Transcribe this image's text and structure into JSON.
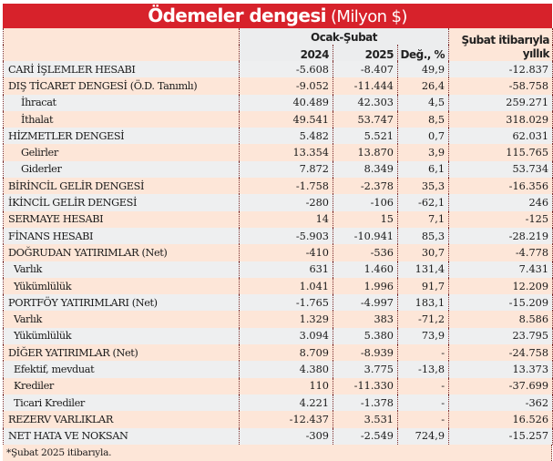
{
  "title": {
    "main": "Ödemeler dengesi",
    "unit": "(Milyon $)"
  },
  "header": {
    "period": "Ocak-Şubat",
    "col_2024": "2024",
    "col_2025": "2025",
    "col_change": "Değ., %",
    "col_annual_line1": "Şubat itibarıyla",
    "col_annual_line2": "yıllık"
  },
  "rows": [
    {
      "label": "CARİ İŞLEMLER HESABI",
      "level": 0,
      "v2024": "-5.608",
      "v2025": "-8.407",
      "change": "49,9",
      "annual": "-12.837"
    },
    {
      "label": "DIŞ TİCARET DENGESİ (Ö.D. Tanımlı)",
      "level": 0,
      "v2024": "-9.052",
      "v2025": "-11.444",
      "change": "26,4",
      "annual": "-58.758"
    },
    {
      "label": "İhracat",
      "level": 1,
      "v2024": "40.489",
      "v2025": "42.303",
      "change": "4,5",
      "annual": "259.271"
    },
    {
      "label": "İthalat",
      "level": 1,
      "v2024": "49.541",
      "v2025": "53.747",
      "change": "8,5",
      "annual": "318.029"
    },
    {
      "label": "HİZMETLER DENGESİ",
      "level": 0,
      "v2024": "5.482",
      "v2025": "5.521",
      "change": "0,7",
      "annual": "62.031"
    },
    {
      "label": "Gelirler",
      "level": 1,
      "v2024": "13.354",
      "v2025": "13.870",
      "change": "3,9",
      "annual": "115.765"
    },
    {
      "label": "Giderler",
      "level": 1,
      "v2024": "7.872",
      "v2025": "8.349",
      "change": "6,1",
      "annual": "53.734"
    },
    {
      "label": "BİRİNCİL GELİR DENGESİ",
      "level": 0,
      "v2024": "-1.758",
      "v2025": "-2.378",
      "change": "35,3",
      "annual": "-16.356"
    },
    {
      "label": "İKİNCİL GELİR DENGESİ",
      "level": 0,
      "v2024": "-280",
      "v2025": "-106",
      "change": "-62,1",
      "annual": "246"
    },
    {
      "label": "SERMAYE HESABI",
      "level": 0,
      "v2024": "14",
      "v2025": "15",
      "change": "7,1",
      "annual": "-125"
    },
    {
      "label": "FİNANS HESABI",
      "level": 0,
      "v2024": "-5.903",
      "v2025": "-10.941",
      "change": "85,3",
      "annual": "-28.219"
    },
    {
      "label": "DOĞRUDAN YATIRIMLAR (Net)",
      "level": 0,
      "v2024": "-410",
      "v2025": "-536",
      "change": "30,7",
      "annual": "-4.778"
    },
    {
      "label": "Varlık",
      "level": 2,
      "v2024": "631",
      "v2025": "1.460",
      "change": "131,4",
      "annual": "7.431"
    },
    {
      "label": "Yükümlülük",
      "level": 2,
      "v2024": "1.041",
      "v2025": "1.996",
      "change": "91,7",
      "annual": "12.209"
    },
    {
      "label": "PORTFÖY YATIRIMLARI (Net)",
      "level": 0,
      "v2024": "-1.765",
      "v2025": "-4.997",
      "change": "183,1",
      "annual": "-15.209"
    },
    {
      "label": "Varlık",
      "level": 2,
      "v2024": "1.329",
      "v2025": "383",
      "change": "-71,2",
      "annual": "8.586"
    },
    {
      "label": "Yükümlülük",
      "level": 2,
      "v2024": "3.094",
      "v2025": "5.380",
      "change": "73,9",
      "annual": "23.795"
    },
    {
      "label": "DİĞER YATIRIMLAR (Net)",
      "level": 0,
      "v2024": "8.709",
      "v2025": "-8.939",
      "change": "-",
      "annual": "-24.758"
    },
    {
      "label": "Efektif, mevduat",
      "level": 2,
      "v2024": "4.380",
      "v2025": "3.775",
      "change": "-13,8",
      "annual": "13.373"
    },
    {
      "label": "Krediler",
      "level": 2,
      "v2024": "110",
      "v2025": "-11.330",
      "change": "-",
      "annual": "-37.699"
    },
    {
      "label": "Ticari Krediler",
      "level": 2,
      "v2024": "4.221",
      "v2025": "-1.378",
      "change": "-",
      "annual": "-362"
    },
    {
      "label": "REZERV VARLIKLAR",
      "level": 0,
      "v2024": "-12.437",
      "v2025": "3.531",
      "change": "-",
      "annual": "16.526"
    },
    {
      "label": "NET HATA VE NOKSAN",
      "level": 0,
      "v2024": "-309",
      "v2025": "-2.549",
      "change": "724,9",
      "annual": "-15.257"
    }
  ],
  "footnote": "*Şubat 2025 itibarıyla.",
  "colors": {
    "title_bg": "#d7222b",
    "row_gray": "#eeeff0",
    "row_peach": "#fde6d8",
    "divider": "#7a2a2a"
  }
}
